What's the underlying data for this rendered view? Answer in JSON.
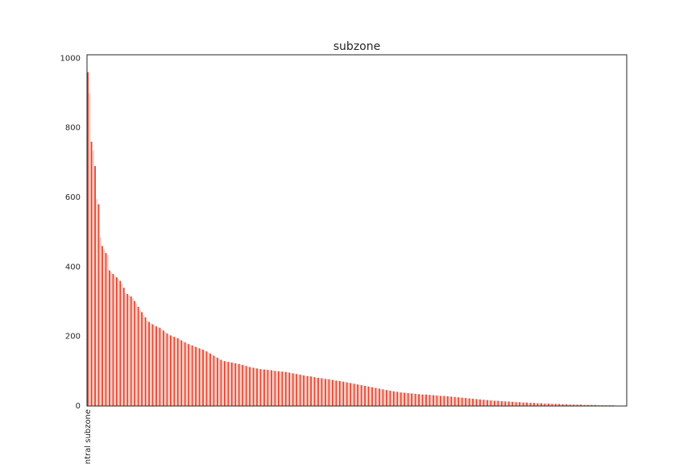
{
  "chart_data": {
    "type": "bar",
    "title": "subzone",
    "categories": [
      "central subzone",
      null,
      null,
      null,
      null,
      null,
      null,
      null,
      null,
      null,
      null,
      null,
      null,
      null,
      null,
      null,
      null,
      null,
      null,
      null,
      null,
      null,
      null,
      null,
      null,
      null,
      null,
      null,
      null,
      null,
      null,
      null,
      null,
      null,
      null,
      null,
      null,
      null,
      null,
      null,
      null,
      null,
      null,
      null,
      null,
      null,
      null,
      null,
      null,
      null,
      null,
      null,
      null,
      null,
      null,
      null,
      null,
      null,
      null,
      null,
      null,
      null,
      null,
      null,
      null,
      null,
      null,
      null,
      null,
      null,
      null,
      null,
      null,
      null,
      null,
      null,
      null,
      null,
      null,
      null,
      null,
      null,
      null,
      null,
      null,
      null,
      null,
      null,
      null,
      null,
      null,
      null,
      null,
      null,
      null,
      null,
      null,
      null,
      null,
      null,
      null,
      null,
      null,
      null,
      null,
      null,
      null,
      null,
      null,
      null,
      null,
      null,
      null,
      null,
      null,
      null,
      null,
      null,
      null,
      null,
      null,
      null,
      null,
      null,
      null,
      null,
      null,
      null,
      null,
      null,
      null,
      null,
      null,
      null,
      null,
      null,
      null,
      null,
      null,
      null,
      null,
      null,
      null,
      null,
      null,
      null,
      null,
      null,
      null,
      null,
      null,
      null,
      null,
      null,
      null,
      null,
      null,
      null,
      null,
      null,
      null,
      null,
      null,
      null,
      null,
      null,
      null,
      null,
      null,
      null,
      null,
      null,
      null,
      null,
      null,
      null,
      null,
      null,
      null,
      null,
      null,
      null,
      null,
      null,
      null,
      null,
      null,
      null,
      null,
      null,
      null,
      null,
      null,
      null,
      null,
      null,
      null,
      null,
      null,
      null,
      null,
      null,
      null,
      null,
      null,
      null,
      null,
      null,
      null,
      null,
      null,
      null,
      null,
      null,
      null,
      null,
      null,
      null,
      null,
      null,
      null,
      null,
      null,
      null,
      null,
      null,
      null,
      null,
      null,
      null,
      null,
      null,
      null,
      null,
      null,
      null,
      null,
      null,
      null,
      null,
      null,
      null,
      null,
      null,
      null,
      null,
      null,
      null,
      null,
      null,
      null,
      null,
      null,
      null,
      null,
      null,
      null,
      null,
      null,
      null,
      null,
      null,
      null,
      null,
      null,
      null,
      null,
      null,
      null,
      null,
      null,
      null,
      null,
      null,
      null,
      null,
      null,
      null,
      null,
      null,
      null,
      null,
      null,
      null,
      null,
      null,
      null,
      null,
      null,
      null,
      null,
      null,
      null,
      null,
      null,
      null,
      null,
      null,
      null,
      null
    ],
    "values": [
      960,
      900,
      760,
      735,
      690,
      595,
      580,
      485,
      460,
      450,
      440,
      435,
      390,
      385,
      380,
      375,
      370,
      365,
      360,
      350,
      340,
      325,
      322,
      318,
      315,
      310,
      302,
      295,
      285,
      275,
      270,
      262,
      255,
      245,
      242,
      238,
      235,
      232,
      229,
      227,
      225,
      221,
      217,
      213,
      209,
      205,
      203,
      201,
      199,
      197,
      195,
      192,
      189,
      186,
      183,
      180,
      178,
      176,
      174,
      172,
      170,
      168,
      166,
      164,
      162,
      160,
      157,
      154,
      151,
      148,
      145,
      142,
      139,
      136,
      133,
      130,
      129,
      128,
      127,
      126,
      125,
      124,
      123,
      122,
      121,
      120,
      118,
      117,
      115,
      114,
      112,
      111,
      110,
      109,
      108,
      107,
      106,
      106,
      105,
      105,
      104,
      103,
      103,
      102,
      101,
      100,
      100,
      99,
      99,
      98,
      98,
      97,
      96,
      95,
      94,
      93,
      92,
      91,
      90,
      89,
      88,
      87,
      86,
      86,
      85,
      84,
      83,
      82,
      81,
      81,
      80,
      79,
      78,
      78,
      77,
      76,
      75,
      74,
      73,
      73,
      72,
      71,
      70,
      69,
      68,
      67,
      66,
      65,
      64,
      63,
      62,
      61,
      60,
      59,
      58,
      57,
      56,
      55,
      54,
      53,
      52,
      51,
      50,
      49,
      48,
      47,
      46,
      45,
      44,
      43,
      42,
      41,
      41,
      40,
      39,
      39,
      38,
      38,
      37,
      37,
      36,
      36,
      35,
      35,
      34,
      34,
      33,
      33,
      33,
      32,
      32,
      32,
      31,
      31,
      30,
      30,
      29,
      29,
      29,
      28,
      28,
      27,
      27,
      26,
      26,
      25,
      25,
      24,
      24,
      23,
      23,
      22,
      22,
      21,
      21,
      20,
      20,
      19,
      19,
      18,
      18,
      18,
      17,
      17,
      16,
      16,
      15,
      15,
      15,
      14,
      14,
      14,
      13,
      13,
      13,
      12,
      12,
      12,
      11,
      11,
      11,
      11,
      10,
      10,
      10,
      9,
      9,
      9,
      9,
      8,
      8,
      8,
      8,
      7,
      7,
      7,
      7,
      7,
      6,
      6,
      6,
      6,
      6,
      5,
      5,
      5,
      5,
      5,
      4,
      4,
      4,
      4,
      4,
      4,
      4,
      3,
      3,
      3,
      3,
      3,
      3,
      3,
      3,
      2,
      2,
      2,
      2,
      2,
      2,
      2,
      2,
      2,
      2,
      1,
      1,
      1,
      1,
      1,
      1,
      1
    ],
    "colors": [
      "#e4412c",
      "#f5c6bb"
    ],
    "ylim": [
      0,
      1010
    ],
    "yticks": [
      0,
      200,
      400,
      600,
      800,
      1000
    ],
    "grid": false
  }
}
